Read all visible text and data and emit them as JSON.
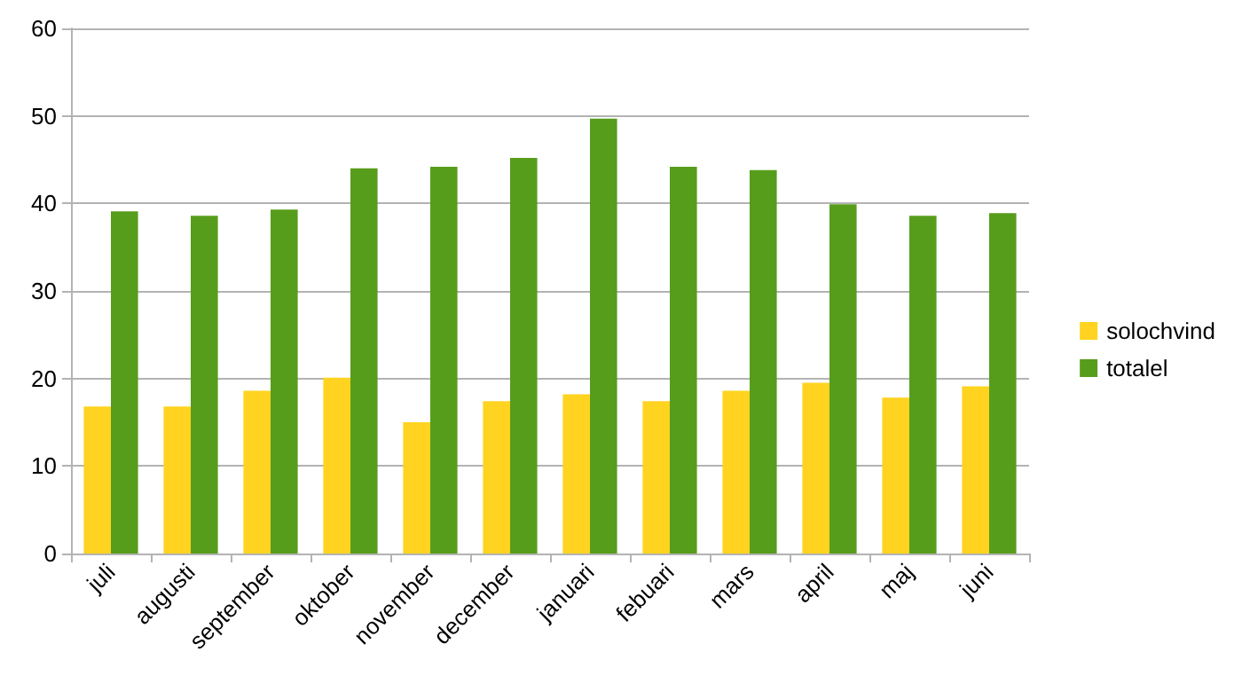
{
  "chart_data": {
    "type": "bar",
    "categories": [
      "juli",
      "augusti",
      "september",
      "oktober",
      "november",
      "december",
      "januari",
      "febuari",
      "mars",
      "april",
      "maj",
      "juni"
    ],
    "series": [
      {
        "name": "solochvind",
        "color": "#ffd320",
        "values": [
          16.8,
          16.8,
          18.6,
          20.1,
          15.0,
          17.4,
          18.2,
          17.4,
          18.6,
          19.5,
          17.8,
          19.1
        ]
      },
      {
        "name": "totalel",
        "color": "#579d1c",
        "values": [
          39.1,
          38.6,
          39.3,
          44.0,
          44.2,
          45.2,
          49.7,
          44.2,
          43.8,
          39.9,
          38.6,
          38.9
        ]
      }
    ],
    "ylim": [
      0,
      60
    ],
    "yticks": [
      0,
      10,
      20,
      30,
      40,
      50,
      60
    ],
    "grid": "y",
    "legend": "right"
  }
}
